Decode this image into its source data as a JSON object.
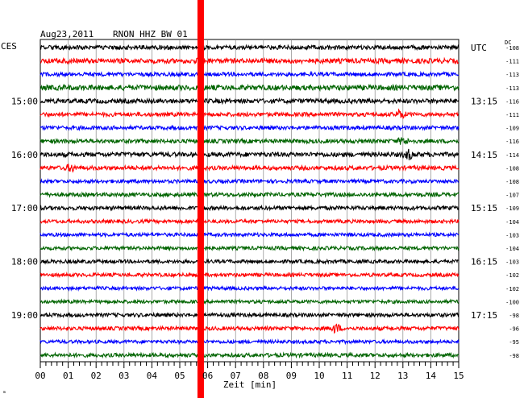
{
  "header": {
    "date": "Aug23,2011",
    "station": "RNON HHZ BW 01",
    "left_tz": "CES",
    "right_tz": "UTC",
    "dc_label": "DC"
  },
  "chart_data": {
    "type": "line",
    "title": "Aug23,2011   RNON HHZ BW 01",
    "xlabel": "Zeit [min]",
    "xlim": [
      0,
      15
    ],
    "x_ticks": [
      "00",
      "01",
      "02",
      "03",
      "04",
      "05",
      "06",
      "07",
      "08",
      "09",
      "10",
      "11",
      "12",
      "13",
      "14",
      "15"
    ],
    "grid": true,
    "trace_colors": [
      "#000000",
      "#ff0000",
      "#0000ff",
      "#006400"
    ],
    "left_hour_labels": [
      {
        "row": 4,
        "text": "15:00"
      },
      {
        "row": 8,
        "text": "16:00"
      },
      {
        "row": 12,
        "text": "17:00"
      },
      {
        "row": 16,
        "text": "18:00"
      },
      {
        "row": 20,
        "text": "19:00"
      }
    ],
    "right_hour_labels": [
      {
        "row": 0,
        "text": "UTC"
      },
      {
        "row": 4,
        "text": "13:15"
      },
      {
        "row": 8,
        "text": "14:15"
      },
      {
        "row": 12,
        "text": "15:15"
      },
      {
        "row": 16,
        "text": "16:15"
      },
      {
        "row": 20,
        "text": "17:15"
      }
    ],
    "dc_offsets": [
      "-108",
      "-111",
      "-113",
      "-113",
      "-116",
      "-111",
      "-109",
      "-116",
      "-114",
      "-108",
      "-108",
      "-107",
      "-109",
      "-104",
      "-103",
      "-104",
      "-103",
      "-102",
      "-102",
      "-100",
      "-98",
      "-96",
      "-95",
      "-98"
    ],
    "amplitude": [
      2.6,
      3.0,
      2.4,
      3.2,
      2.8,
      2.5,
      2.4,
      2.5,
      2.8,
      2.6,
      2.2,
      2.4,
      2.4,
      2.2,
      2.2,
      2.2,
      2.2,
      2.2,
      2.1,
      2.1,
      2.3,
      2.3,
      2.1,
      2.4
    ],
    "events": [
      {
        "row": 5,
        "minute": 12.9,
        "amplitude": 5
      },
      {
        "row": 8,
        "minute": 13.2,
        "amplitude": 5
      },
      {
        "row": 7,
        "minute": 13.0,
        "amplitude": 4
      },
      {
        "row": 21,
        "minute": 10.6,
        "amplitude": 5
      },
      {
        "row": 9,
        "minute": 1.1,
        "amplitude": 4
      },
      {
        "row": 1,
        "minute": 5.8,
        "amplitude": 4
      }
    ],
    "marker": {
      "minute": 5.75,
      "color": "#ff0000"
    },
    "corner_symbol": "ₘ"
  }
}
